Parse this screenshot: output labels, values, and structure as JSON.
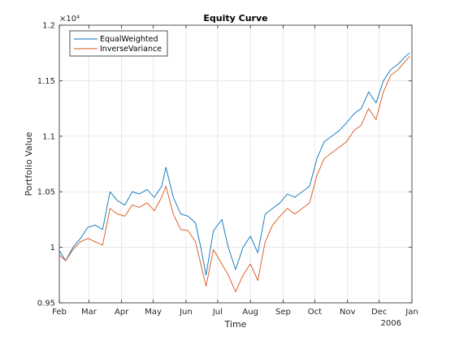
{
  "chart_data": {
    "type": "line",
    "title": "Equity Curve",
    "xlabel": "Time",
    "ylabel": "Portfolio Value",
    "y_exponent_label": "×10⁴",
    "year_label": "2006",
    "x_tick_labels": [
      "Feb",
      "Mar",
      "Apr",
      "May",
      "Jun",
      "Jul",
      "Aug",
      "Sep",
      "Oct",
      "Nov",
      "Dec",
      "Jan"
    ],
    "y_tick_labels": [
      "0.95",
      "1",
      "1.05",
      "1.1",
      "1.15",
      "1.2"
    ],
    "y_ticks_values": [
      0.95,
      1.0,
      1.05,
      1.1,
      1.15,
      1.2
    ],
    "x_months": [
      "2005-02",
      "2005-03",
      "2005-04",
      "2005-05",
      "2005-06",
      "2005-07",
      "2005-08",
      "2005-09",
      "2005-10",
      "2005-11",
      "2005-12",
      "2006-01"
    ],
    "xlim": [
      "2005-02-01",
      "2006-01-01"
    ],
    "ylim": [
      0.95,
      1.2
    ],
    "y_scale_factor": 10000,
    "grid": true,
    "legend_position": "top-left",
    "series": [
      {
        "name": "EqualWeighted",
        "color": "#0072BD",
        "x": [
          "2005-02-01",
          "2005-02-07",
          "2005-02-14",
          "2005-02-21",
          "2005-02-28",
          "2005-03-07",
          "2005-03-14",
          "2005-03-21",
          "2005-03-28",
          "2005-04-04",
          "2005-04-11",
          "2005-04-18",
          "2005-04-25",
          "2005-05-02",
          "2005-05-09",
          "2005-05-13",
          "2005-05-20",
          "2005-05-27",
          "2005-06-03",
          "2005-06-10",
          "2005-06-15",
          "2005-06-20",
          "2005-06-27",
          "2005-07-05",
          "2005-07-11",
          "2005-07-18",
          "2005-07-25",
          "2005-08-01",
          "2005-08-08",
          "2005-08-15",
          "2005-08-22",
          "2005-08-29",
          "2005-09-05",
          "2005-09-12",
          "2005-09-19",
          "2005-09-26",
          "2005-10-03",
          "2005-10-10",
          "2005-10-17",
          "2005-10-24",
          "2005-10-31",
          "2005-11-07",
          "2005-11-14",
          "2005-11-21",
          "2005-11-28",
          "2005-12-05",
          "2005-12-12",
          "2005-12-19",
          "2005-12-26",
          "2005-12-30"
        ],
        "values": [
          0.997,
          0.988,
          1.0,
          1.008,
          1.018,
          1.02,
          1.016,
          1.05,
          1.042,
          1.038,
          1.05,
          1.048,
          1.052,
          1.045,
          1.055,
          1.072,
          1.045,
          1.03,
          1.028,
          1.022,
          1.0,
          0.975,
          1.015,
          1.025,
          1.0,
          0.98,
          1.0,
          1.01,
          0.995,
          1.03,
          1.035,
          1.04,
          1.048,
          1.045,
          1.05,
          1.055,
          1.08,
          1.095,
          1.1,
          1.105,
          1.112,
          1.12,
          1.125,
          1.14,
          1.13,
          1.15,
          1.16,
          1.165,
          1.172,
          1.175
        ]
      },
      {
        "name": "InverseVariance",
        "color": "#D95319",
        "x": [
          "2005-02-01",
          "2005-02-07",
          "2005-02-14",
          "2005-02-21",
          "2005-02-28",
          "2005-03-07",
          "2005-03-14",
          "2005-03-21",
          "2005-03-28",
          "2005-04-04",
          "2005-04-11",
          "2005-04-18",
          "2005-04-25",
          "2005-05-02",
          "2005-05-09",
          "2005-05-13",
          "2005-05-20",
          "2005-05-27",
          "2005-06-03",
          "2005-06-10",
          "2005-06-15",
          "2005-06-20",
          "2005-06-27",
          "2005-07-05",
          "2005-07-11",
          "2005-07-18",
          "2005-07-25",
          "2005-08-01",
          "2005-08-08",
          "2005-08-15",
          "2005-08-22",
          "2005-08-29",
          "2005-09-05",
          "2005-09-12",
          "2005-09-19",
          "2005-09-26",
          "2005-10-03",
          "2005-10-10",
          "2005-10-17",
          "2005-10-24",
          "2005-10-31",
          "2005-11-07",
          "2005-11-14",
          "2005-11-21",
          "2005-11-28",
          "2005-12-05",
          "2005-12-12",
          "2005-12-19",
          "2005-12-26",
          "2005-12-30"
        ],
        "values": [
          0.993,
          0.988,
          0.998,
          1.005,
          1.008,
          1.005,
          1.002,
          1.035,
          1.03,
          1.028,
          1.038,
          1.036,
          1.04,
          1.033,
          1.045,
          1.055,
          1.03,
          1.016,
          1.015,
          1.005,
          0.985,
          0.965,
          0.998,
          0.985,
          0.975,
          0.96,
          0.975,
          0.985,
          0.97,
          1.005,
          1.02,
          1.028,
          1.035,
          1.03,
          1.035,
          1.04,
          1.065,
          1.08,
          1.085,
          1.09,
          1.095,
          1.105,
          1.11,
          1.125,
          1.115,
          1.14,
          1.155,
          1.16,
          1.168,
          1.172
        ]
      }
    ]
  }
}
